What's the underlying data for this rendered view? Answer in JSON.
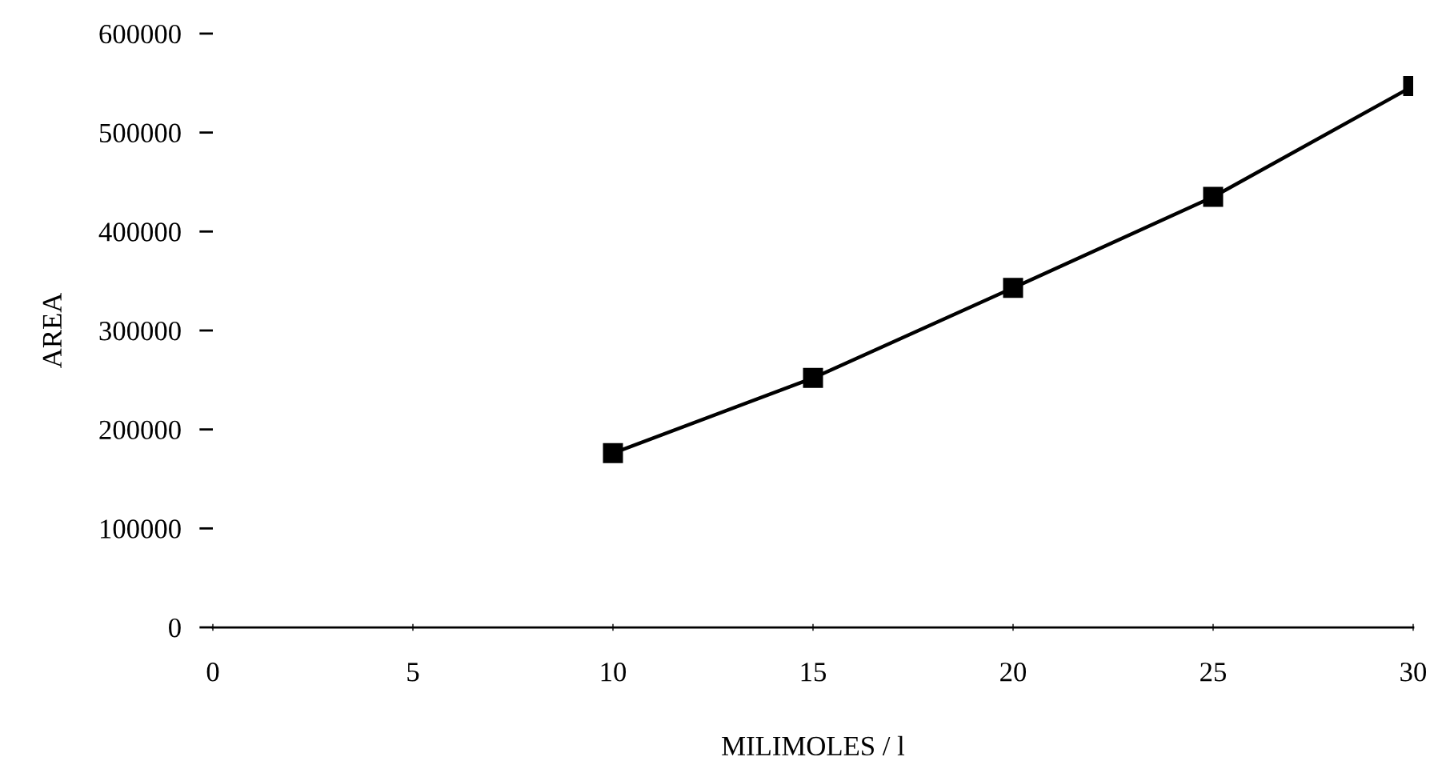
{
  "chart_data": {
    "type": "line",
    "xlabel": "MILIMOLES / l",
    "ylabel": "AREA",
    "x": [
      10,
      15,
      20,
      25,
      30
    ],
    "series": [
      {
        "color": "#000000",
        "values": [
          176000,
          252000,
          343000,
          435000,
          547000
        ]
      }
    ],
    "xlim": [
      0,
      30
    ],
    "xticks": [
      0,
      5,
      10,
      15,
      20,
      25,
      30
    ],
    "ylim": [
      0,
      600000
    ],
    "yticks": [
      0,
      100000,
      200000,
      300000,
      400000,
      500000,
      600000
    ],
    "grid": false,
    "marker": "square",
    "line_style": "solid"
  }
}
